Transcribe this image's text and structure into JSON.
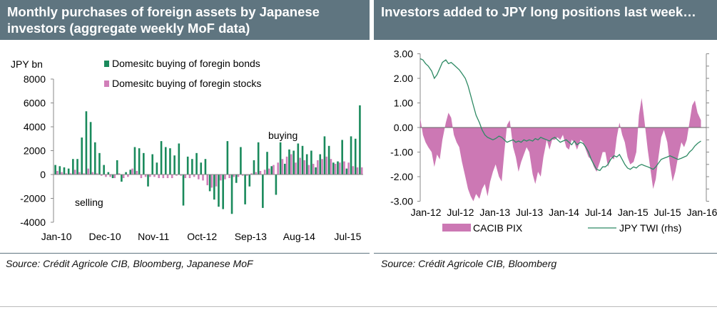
{
  "colors": {
    "header_bg": "#5f7580",
    "bonds": "#1a8a5c",
    "stocks": "#d17fb9",
    "pix_fill": "#cc78b4",
    "twi_line": "#2e8a64"
  },
  "left_panel": {
    "title": "Monthly purchases of foreign assets by Japanese investors (aggregate weekly MoF data)",
    "source": "Source: Crédit Agricole CIB, Bloomberg, Japanese MoF"
  },
  "right_panel": {
    "title": "Investors added to JPY long positions last week…",
    "source": "Source: Crédit Agricole CIB, Bloomberg"
  },
  "chart_data": [
    {
      "type": "bar",
      "title": "Monthly purchases of foreign assets by Japanese investors (aggregate weekly MoF data)",
      "ylabel": "JPY  bn",
      "ylim": [
        -4000,
        8000
      ],
      "yticks": [
        -4000,
        -2000,
        0,
        2000,
        4000,
        6000,
        8000
      ],
      "ytick_labels": [
        "-4000",
        "-2000",
        "0",
        "2000",
        "4000",
        "6000",
        "8000"
      ],
      "xtick_labels": [
        "Jan-10",
        "Dec-10",
        "Nov-11",
        "Oct-12",
        "Sep-13",
        "Aug-14",
        "Jul-15"
      ],
      "xtick_positions": [
        0,
        11,
        22,
        33,
        44,
        55,
        66
      ],
      "annotations": [
        "buying",
        "selling"
      ],
      "series": [
        {
          "name": "Domesitc buying of foregin bonds",
          "values": [
            800,
            700,
            600,
            500,
            1300,
            1300,
            3100,
            5300,
            4400,
            2700,
            1800,
            800,
            200,
            -300,
            1200,
            -600,
            200,
            400,
            2300,
            2200,
            1800,
            -1000,
            1700,
            1000,
            2800,
            2300,
            2200,
            1600,
            2600,
            -2600,
            1500,
            1300,
            1800,
            1000,
            1300,
            -1400,
            -2100,
            -2700,
            -2900,
            2800,
            -3300,
            -700,
            2300,
            -2500,
            -1000,
            1200,
            2700,
            -2800,
            1900,
            700,
            -1700,
            2700,
            900,
            2100,
            2000,
            2600,
            2400,
            1700,
            2000,
            600,
            1700,
            3200,
            2400,
            1000,
            1100,
            2900,
            500,
            3200,
            3000,
            5800
          ]
        },
        {
          "name": "Domesitc buying of foregin stocks",
          "values": [
            300,
            200,
            100,
            100,
            400,
            200,
            100,
            500,
            200,
            100,
            -100,
            -200,
            -200,
            -300,
            100,
            -300,
            -200,
            500,
            300,
            -300,
            -200,
            -200,
            -200,
            -300,
            -300,
            -300,
            -300,
            -100,
            -100,
            -300,
            -300,
            -200,
            -400,
            -500,
            -900,
            -1100,
            -1000,
            -500,
            -400,
            -300,
            -200,
            -200,
            -100,
            -100,
            100,
            200,
            300,
            400,
            500,
            800,
            1000,
            1300,
            1500,
            1700,
            1000,
            1400,
            1200,
            800,
            900,
            1200,
            1300,
            1500,
            1300,
            900,
            1000,
            1100,
            1000,
            700,
            600,
            600
          ]
        }
      ]
    },
    {
      "type": "area",
      "title": "Investors added to JPY long positions last week…",
      "ylim": [
        -3,
        3
      ],
      "yticks": [
        -3,
        -2,
        -1,
        0,
        1,
        2,
        3
      ],
      "ytick_labels": [
        "-3.00",
        "-2.00",
        "-1.00",
        "0.00",
        "1.00",
        "2.00",
        "3.00"
      ],
      "xtick_labels": [
        "Jan-12",
        "Jul-12",
        "Jan-13",
        "Jul-13",
        "Jan-14",
        "Jul-14",
        "Jan-15",
        "Jul-15",
        "Jan-16"
      ],
      "xlim": [
        2012.0,
        2016.25
      ],
      "series": [
        {
          "name": "CACIB PIX",
          "type": "area",
          "x": [
            2012.0,
            2012.04,
            2012.08,
            2012.12,
            2012.17,
            2012.21,
            2012.25,
            2012.29,
            2012.33,
            2012.38,
            2012.42,
            2012.46,
            2012.5,
            2012.54,
            2012.58,
            2012.62,
            2012.67,
            2012.71,
            2012.75,
            2012.79,
            2012.83,
            2012.88,
            2012.92,
            2012.96,
            2013.0,
            2013.04,
            2013.08,
            2013.12,
            2013.17,
            2013.21,
            2013.25,
            2013.29,
            2013.33,
            2013.38,
            2013.42,
            2013.46,
            2013.5,
            2013.54,
            2013.58,
            2013.62,
            2013.67,
            2013.71,
            2013.75,
            2013.79,
            2013.83,
            2013.88,
            2013.92,
            2013.96,
            2014.0,
            2014.04,
            2014.08,
            2014.12,
            2014.17,
            2014.21,
            2014.25,
            2014.29,
            2014.33,
            2014.38,
            2014.42,
            2014.46,
            2014.5,
            2014.54,
            2014.58,
            2014.62,
            2014.67,
            2014.71,
            2014.75,
            2014.79,
            2014.83,
            2014.88,
            2014.92,
            2014.96,
            2015.0,
            2015.04,
            2015.08,
            2015.12,
            2015.17,
            2015.21,
            2015.25,
            2015.29,
            2015.33,
            2015.38,
            2015.42,
            2015.46,
            2015.5,
            2015.54,
            2015.58,
            2015.62,
            2015.67,
            2015.71,
            2015.75,
            2015.79,
            2015.83,
            2015.88,
            2015.92,
            2015.96,
            2016.0,
            2016.04,
            2016.08,
            2016.12,
            2016.17
          ],
          "values": [
            0.4,
            -0.3,
            -0.6,
            -0.8,
            -1.0,
            -1.6,
            -1.1,
            -1.3,
            -0.5,
            0.2,
            0.6,
            0.4,
            -0.3,
            -0.6,
            -0.8,
            -1.4,
            -2.0,
            -2.5,
            -2.8,
            -3.0,
            -2.7,
            -2.9,
            -2.5,
            -2.3,
            -2.8,
            -2.2,
            -1.8,
            -1.5,
            -2.0,
            -2.2,
            -1.0,
            0.1,
            0.3,
            -0.8,
            -1.2,
            -1.8,
            -1.4,
            -1.1,
            -0.8,
            -1.0,
            -1.9,
            -2.3,
            -1.8,
            -2.0,
            -1.2,
            -0.5,
            -0.9,
            -0.5,
            -0.5,
            -0.4,
            -0.5,
            -0.3,
            -0.8,
            -0.9,
            -0.5,
            -0.6,
            -0.9,
            -0.5,
            -0.6,
            -0.9,
            -1.2,
            -1.3,
            -1.6,
            -1.8,
            -1.4,
            -1.0,
            -1.0,
            -1.6,
            -1.2,
            -1.3,
            -0.4,
            0.2,
            -0.3,
            -0.6,
            -1.2,
            -1.5,
            -1.4,
            -1.0,
            0.5,
            1.2,
            0.3,
            -0.9,
            -1.7,
            -2.5,
            -2.1,
            -1.2,
            -0.4,
            -0.1,
            -0.6,
            -1.5,
            -2.2,
            -1.8,
            -1.2,
            -0.6,
            -0.8,
            -0.5,
            0.2,
            0.9,
            1.1,
            0.6,
            0.3
          ]
        },
        {
          "name": "JPY TWI (rhs)",
          "type": "line",
          "x": [
            2012.0,
            2012.04,
            2012.08,
            2012.12,
            2012.17,
            2012.21,
            2012.25,
            2012.29,
            2012.33,
            2012.38,
            2012.42,
            2012.46,
            2012.5,
            2012.54,
            2012.58,
            2012.62,
            2012.67,
            2012.71,
            2012.75,
            2012.79,
            2012.83,
            2012.88,
            2012.92,
            2012.96,
            2013.0,
            2013.04,
            2013.08,
            2013.12,
            2013.17,
            2013.21,
            2013.25,
            2013.29,
            2013.33,
            2013.38,
            2013.42,
            2013.46,
            2013.5,
            2013.54,
            2013.58,
            2013.62,
            2013.67,
            2013.71,
            2013.75,
            2013.79,
            2013.83,
            2013.88,
            2013.92,
            2013.96,
            2014.0,
            2014.04,
            2014.08,
            2014.12,
            2014.17,
            2014.21,
            2014.25,
            2014.29,
            2014.33,
            2014.38,
            2014.42,
            2014.46,
            2014.5,
            2014.54,
            2014.58,
            2014.62,
            2014.67,
            2014.71,
            2014.75,
            2014.79,
            2014.83,
            2014.88,
            2014.92,
            2014.96,
            2015.0,
            2015.04,
            2015.08,
            2015.12,
            2015.17,
            2015.21,
            2015.25,
            2015.29,
            2015.33,
            2015.38,
            2015.42,
            2015.46,
            2015.5,
            2015.54,
            2015.58,
            2015.62,
            2015.67,
            2015.71,
            2015.75,
            2015.79,
            2015.83,
            2015.88,
            2015.92,
            2015.96,
            2016.0,
            2016.04,
            2016.08,
            2016.12,
            2016.17
          ],
          "values": [
            2.8,
            2.75,
            2.6,
            2.5,
            2.3,
            2.0,
            2.15,
            2.4,
            2.65,
            2.75,
            2.6,
            2.65,
            2.55,
            2.45,
            2.35,
            2.2,
            2.0,
            1.7,
            1.3,
            0.9,
            0.5,
            0.2,
            -0.1,
            -0.3,
            -0.4,
            -0.45,
            -0.5,
            -0.45,
            -0.35,
            -0.4,
            -0.5,
            -0.6,
            -0.55,
            -0.5,
            -0.6,
            -0.55,
            -0.6,
            -0.5,
            -0.55,
            -0.5,
            -0.55,
            -0.45,
            -0.5,
            -0.4,
            -0.45,
            -0.5,
            -0.55,
            -0.45,
            -0.4,
            -0.5,
            -0.6,
            -0.55,
            -0.5,
            -0.6,
            -0.7,
            -0.55,
            -0.7,
            -0.6,
            -0.65,
            -0.8,
            -1.0,
            -1.3,
            -1.5,
            -1.7,
            -1.75,
            -1.6,
            -1.6,
            -1.5,
            -1.3,
            -1.15,
            -1.2,
            -1.1,
            -1.3,
            -1.5,
            -1.65,
            -1.7,
            -1.6,
            -1.65,
            -1.55,
            -1.5,
            -1.55,
            -1.6,
            -1.65,
            -1.7,
            -1.6,
            -1.45,
            -1.3,
            -1.25,
            -1.2,
            -1.15,
            -1.2,
            -1.25,
            -1.3,
            -1.25,
            -1.2,
            -1.15,
            -1.0,
            -0.9,
            -0.75,
            -0.65,
            -0.55
          ]
        }
      ]
    }
  ]
}
